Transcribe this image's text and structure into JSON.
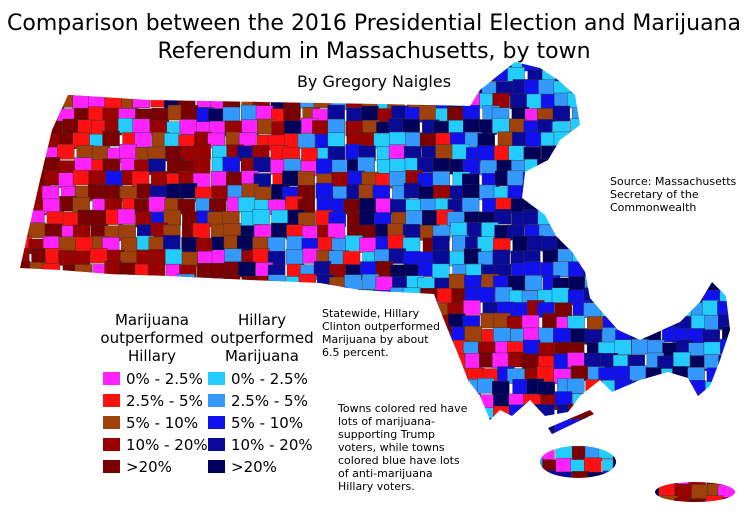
{
  "title_lines": [
    "Comparison between the 2016 Presidential Election and Marijuana",
    "Referendum in Massachusetts, by town"
  ],
  "byline": "By Gregory Naigles",
  "source_lines": [
    "Source: Massachusetts",
    "Secretary of the",
    "Commonwealth"
  ],
  "statewide_note_lines": [
    "Statewide, Hillary",
    "Clinton outperformed",
    "Marijuana by about",
    "6.5 percent."
  ],
  "color_note_lines": [
    "Towns colored red have",
    "lots of marijuana-",
    "supporting Trump",
    "voters, while towns",
    "colored blue have lots",
    "of anti-marijuana",
    "Hillary voters."
  ],
  "legend": {
    "groups": [
      {
        "heading_lines": [
          "Marijuana",
          "outperformed",
          "Hillary"
        ],
        "items": [
          {
            "label": "0% - 2.5%",
            "color": "#ff22ff"
          },
          {
            "label": "2.5% - 5%",
            "color": "#ff1111"
          },
          {
            "label": "5% - 10%",
            "color": "#a0400a"
          },
          {
            "label": "10% - 20%",
            "color": "#990000"
          },
          {
            "label": ">20%",
            "color": "#7a0000"
          }
        ]
      },
      {
        "heading_lines": [
          "Hillary",
          "outperformed",
          "Marijuana"
        ],
        "items": [
          {
            "label": "0% - 2.5%",
            "color": "#22ccff"
          },
          {
            "label": "2.5% - 5%",
            "color": "#3399ff"
          },
          {
            "label": "5% - 10%",
            "color": "#1111ee"
          },
          {
            "label": "10% - 20%",
            "color": "#0a0a99"
          },
          {
            "label": ">20%",
            "color": "#00005a"
          }
        ]
      }
    ]
  }
}
